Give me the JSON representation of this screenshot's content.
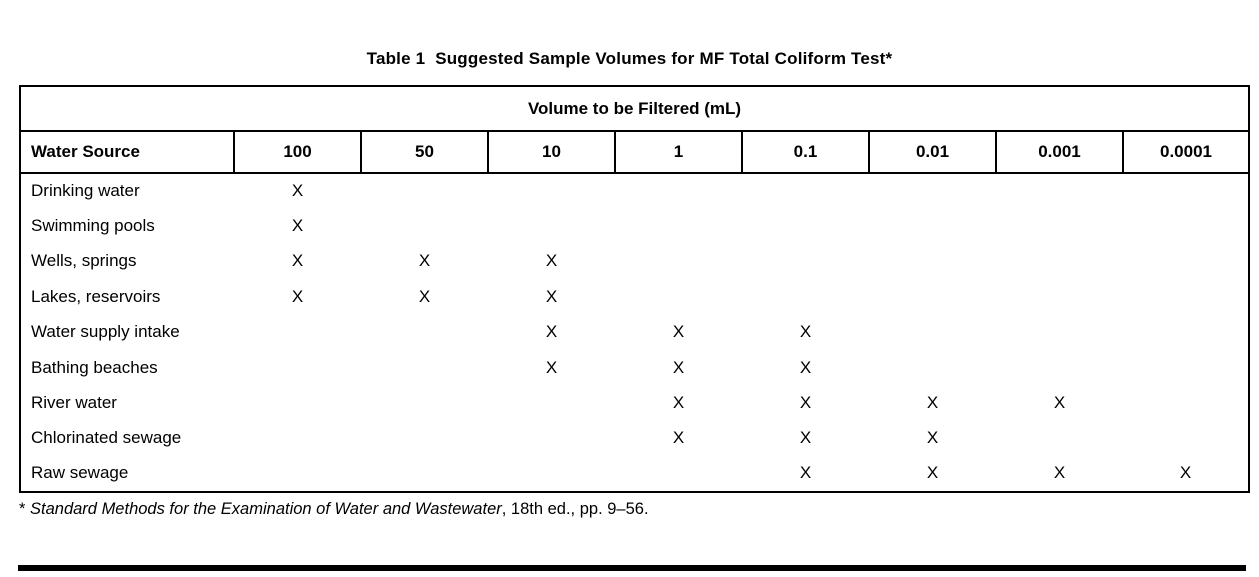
{
  "title": "Table 1  Suggested Sample Volumes for MF Total Coliform Test*",
  "table": {
    "span_header": "Volume to be Filtered (mL)",
    "row_header": "Water Source",
    "volume_columns": [
      "100",
      "50",
      "10",
      "1",
      "0.1",
      "0.01",
      "0.001",
      "0.0001"
    ],
    "mark_symbol": "X",
    "rows": [
      {
        "source": "Drinking water",
        "marks": [
          "X",
          "",
          "",
          "",
          "",
          "",
          "",
          ""
        ]
      },
      {
        "source": "Swimming pools",
        "marks": [
          "X",
          "",
          "",
          "",
          "",
          "",
          "",
          ""
        ]
      },
      {
        "source": "Wells, springs",
        "marks": [
          "X",
          "X",
          "X",
          "",
          "",
          "",
          "",
          ""
        ]
      },
      {
        "source": "Lakes, reservoirs",
        "marks": [
          "X",
          "X",
          "X",
          "",
          "",
          "",
          "",
          ""
        ]
      },
      {
        "source": "Water supply intake",
        "marks": [
          "",
          "",
          "X",
          "X",
          "X",
          "",
          "",
          ""
        ]
      },
      {
        "source": "Bathing beaches",
        "marks": [
          "",
          "",
          "X",
          "X",
          "X",
          "",
          "",
          ""
        ]
      },
      {
        "source": "River water",
        "marks": [
          "",
          "",
          "",
          "X",
          "X",
          "X",
          "X",
          ""
        ]
      },
      {
        "source": "Chlorinated sewage",
        "marks": [
          "",
          "",
          "",
          "X",
          "X",
          "X",
          "",
          ""
        ]
      },
      {
        "source": "Raw sewage",
        "marks": [
          "",
          "",
          "",
          "",
          "X",
          "X",
          "X",
          "X"
        ]
      }
    ]
  },
  "footnote": {
    "asterisk": "*",
    "italic_part": "Standard Methods for the Examination of Water and Wastewater",
    "regular_part": ", 18th ed., pp. 9–56."
  }
}
